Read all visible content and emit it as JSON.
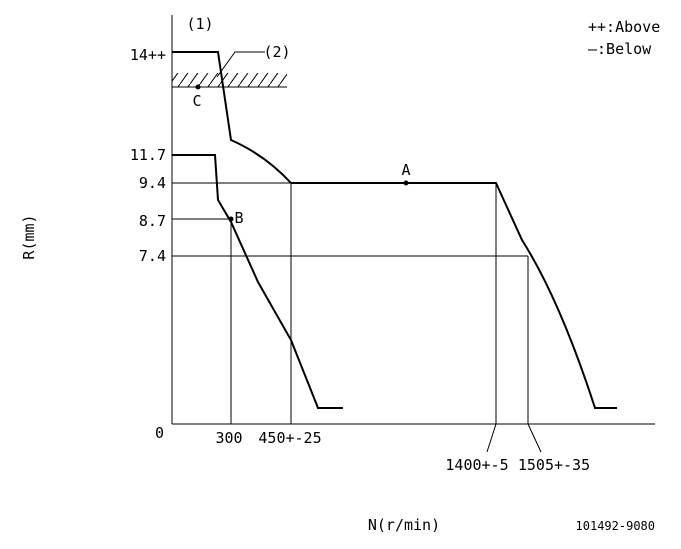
{
  "diagram": {
    "y_axis_label": "R(mm)",
    "x_axis_label": "N(r/min)",
    "y_ticks": [
      "14++",
      "11.7",
      "9.4",
      "8.7",
      "7.4",
      "0"
    ],
    "x_ticks": [
      "300",
      "450+-25",
      "1400+-5",
      "1505+-35"
    ],
    "markers": [
      "(1)",
      "(2)",
      "A",
      "B",
      "C"
    ],
    "legend": [
      "++:Above",
      "—:Below"
    ],
    "code": "101492-9080"
  }
}
